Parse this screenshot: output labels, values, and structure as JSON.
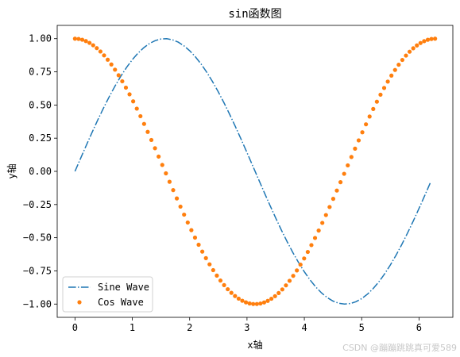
{
  "chart_data": {
    "type": "line",
    "title": "sin函数图",
    "xlabel": "x轴",
    "ylabel": "y轴",
    "xlim": [
      -0.31,
      6.59
    ],
    "ylim": [
      -1.1,
      1.1
    ],
    "xticks": [
      0,
      1,
      2,
      3,
      4,
      5,
      6
    ],
    "xtick_labels": [
      "0",
      "1",
      "2",
      "3",
      "4",
      "5",
      "6"
    ],
    "yticks": [
      -1.0,
      -0.75,
      -0.5,
      -0.25,
      0.0,
      0.25,
      0.5,
      0.75,
      1.0
    ],
    "ytick_labels": [
      "−1.00",
      "−0.75",
      "−0.50",
      "−0.25",
      "0.00",
      "0.25",
      "0.50",
      "0.75",
      "1.00"
    ],
    "grid": false,
    "legend_position": "lower-left",
    "series": [
      {
        "name": "Sine Wave",
        "function": "sin",
        "style": "dash-dot",
        "color": "#1f77b4",
        "x_start": 0,
        "x_end": 6.2,
        "x_step": 0.1
      },
      {
        "name": "Cos Wave",
        "function": "cos",
        "style": "dots",
        "color": "#ff7f0e",
        "x_start": 0,
        "x_end": 6.28,
        "points": 100
      }
    ]
  },
  "watermark": "CSDN @蹦蹦跳跳真可爱589"
}
